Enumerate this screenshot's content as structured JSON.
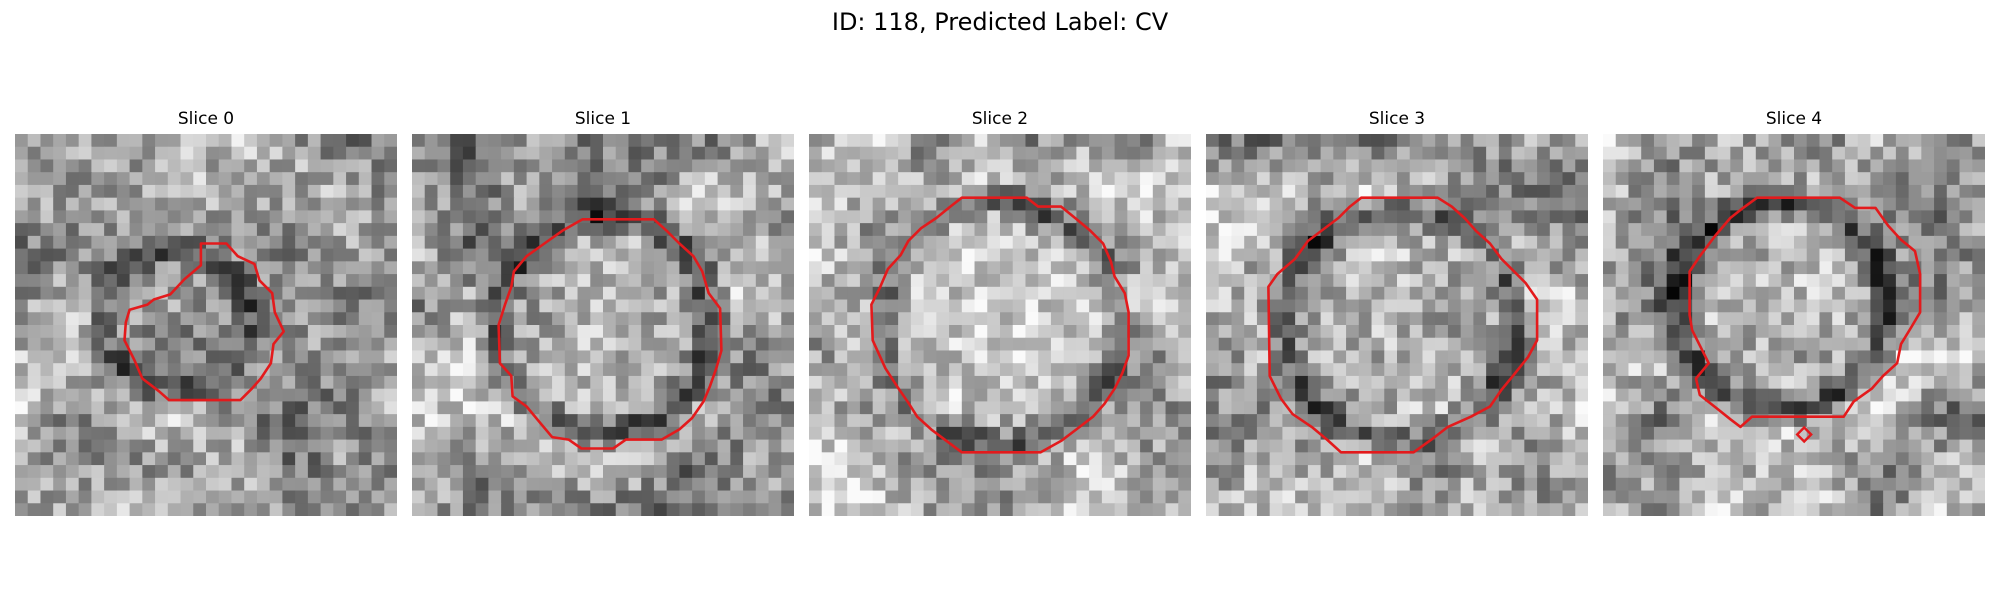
{
  "figure": {
    "title": "ID: 118, Predicted Label: CV",
    "contour_color": "#e31a1c",
    "colormap": "grayscale"
  },
  "panels": [
    {
      "title": "Slice 0"
    },
    {
      "title": "Slice 1"
    },
    {
      "title": "Slice 2"
    },
    {
      "title": "Slice 3"
    },
    {
      "title": "Slice 4"
    }
  ]
}
